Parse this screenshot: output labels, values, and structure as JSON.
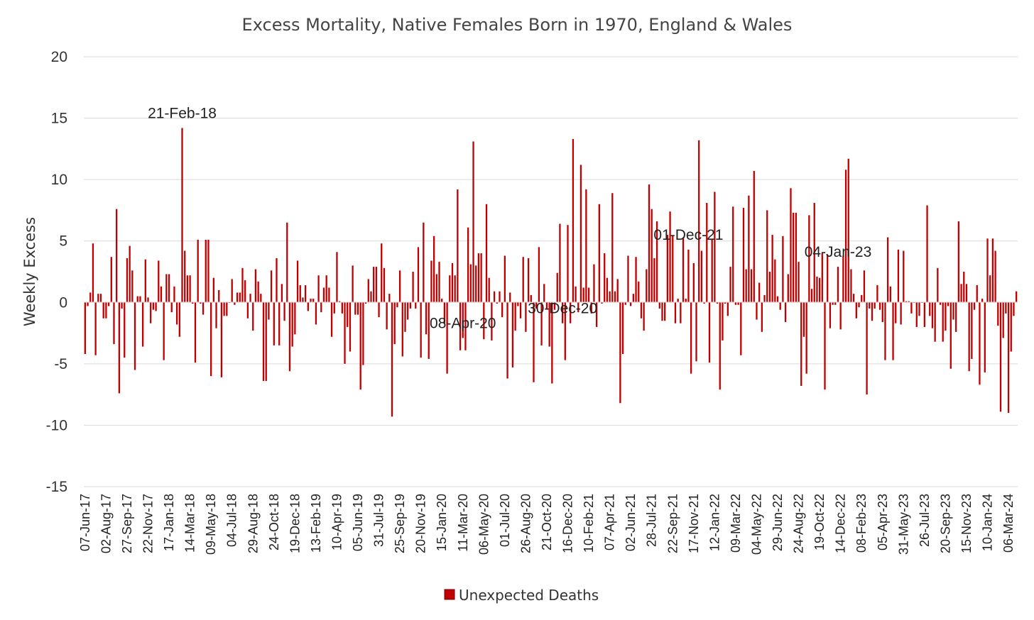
{
  "chart_data": {
    "type": "bar",
    "title": "Excess Mortality, Native Females Born in 1970, England & Wales",
    "ylabel": "Weekly Excess",
    "xlabel": "",
    "ylim": [
      -15,
      20
    ],
    "yticks": [
      20,
      15,
      10,
      5,
      0,
      -5,
      -10,
      -15
    ],
    "grid": "horizontal",
    "legend_position": "bottom",
    "series": [
      {
        "name": "Unexpected Deaths",
        "color": "#C00000",
        "values": [
          -4.2,
          -0.3,
          0.8,
          4.8,
          -4.3,
          0.7,
          0.7,
          -1.3,
          -1.3,
          -0.3,
          3.7,
          -3.4,
          7.6,
          -7.4,
          -0.5,
          -4.5,
          3.6,
          4.6,
          2.6,
          -5.5,
          0.5,
          0.5,
          -3.6,
          3.5,
          0.4,
          -1.7,
          -0.6,
          -0.7,
          3.4,
          1.3,
          -4.7,
          2.3,
          2.3,
          -0.8,
          1.3,
          -1.8,
          -2.8,
          14.2,
          4.2,
          2.2,
          2.2,
          -0.1,
          -4.9,
          5.1,
          -0.1,
          -1.0,
          5.1,
          5.1,
          -6.0,
          2.0,
          -2.1,
          1.0,
          -6.1,
          -1.1,
          -1.1,
          0.0,
          1.9,
          -0.2,
          0.8,
          0.8,
          2.8,
          1.8,
          -1.3,
          0.7,
          -2.3,
          2.7,
          1.7,
          0.7,
          -6.4,
          -6.4,
          -1.4,
          2.6,
          -3.5,
          3.6,
          -3.5,
          1.5,
          -1.5,
          6.5,
          -5.6,
          -3.6,
          -2.6,
          3.4,
          1.4,
          0.4,
          1.4,
          -0.7,
          0.3,
          0.3,
          -1.8,
          2.2,
          -0.8,
          1.2,
          2.2,
          1.2,
          -2.8,
          -0.9,
          4.1,
          0.1,
          -0.9,
          -5.0,
          -2.0,
          -4.0,
          3.0,
          -1.0,
          -1.0,
          -7.1,
          -5.1,
          -0.1,
          1.9,
          0.9,
          2.9,
          2.9,
          -1.2,
          4.8,
          2.8,
          -2.2,
          0.7,
          -9.3,
          -3.4,
          -0.4,
          2.6,
          -4.4,
          -2.4,
          -1.4,
          -0.5,
          2.5,
          -0.5,
          4.5,
          -4.5,
          6.5,
          -2.6,
          -4.6,
          3.4,
          5.4,
          2.3,
          3.3,
          0.3,
          -1.7,
          -5.8,
          2.2,
          3.2,
          2.2,
          9.2,
          -3.9,
          -2.9,
          -3.9,
          6.1,
          3.1,
          13.1,
          3.0,
          4.0,
          4.0,
          -3.0,
          8.0,
          2.0,
          -3.1,
          0.9,
          -0.1,
          0.9,
          -1.2,
          3.8,
          -6.2,
          0.8,
          -5.3,
          -2.3,
          -0.3,
          -1.3,
          3.7,
          -2.4,
          3.6,
          0.6,
          -6.5,
          -0.5,
          4.5,
          -3.5,
          1.5,
          -0.5,
          -3.6,
          -6.6,
          -0.6,
          2.4,
          6.4,
          -1.7,
          -4.7,
          6.3,
          -1.7,
          13.3,
          1.3,
          -0.8,
          11.2,
          1.2,
          9.2,
          1.2,
          -0.9,
          3.1,
          -2.0,
          8.0,
          -0.1,
          4.0,
          2.0,
          0.9,
          8.9,
          0.9,
          1.9,
          -8.2,
          -4.2,
          -0.2,
          3.8,
          -0.3,
          0.7,
          3.7,
          1.7,
          -1.3,
          -2.3,
          2.7,
          9.6,
          7.6,
          3.6,
          6.6,
          -0.5,
          -1.5,
          -1.5,
          5.5,
          7.4,
          5.4,
          -1.7,
          0.3,
          -1.7,
          5.3,
          0.3,
          4.3,
          -5.8,
          3.2,
          -4.8,
          13.2,
          4.2,
          -0.1,
          8.1,
          -4.9,
          5.1,
          9.0,
          -0.1,
          -7.1,
          -3.1,
          -0.1,
          -1.1,
          2.9,
          7.8,
          -0.2,
          -0.2,
          -4.3,
          7.7,
          2.7,
          8.7,
          2.7,
          10.7,
          -1.4,
          1.6,
          -2.4,
          0.6,
          7.5,
          2.5,
          5.5,
          3.5,
          0.5,
          -0.6,
          5.4,
          -1.6,
          2.3,
          9.3,
          7.3,
          7.3,
          3.3,
          -6.8,
          -2.8,
          -5.8,
          7.1,
          1.1,
          8.1,
          2.1,
          2.0,
          4.0,
          -7.1,
          3.9,
          -2.1,
          -0.2,
          -0.2,
          2.9,
          -2.2,
          3.8,
          10.8,
          11.7,
          2.7,
          0.7,
          -1.3,
          -0.4,
          0.6,
          2.6,
          -7.5,
          -0.5,
          -1.5,
          -0.5,
          1.4,
          -0.6,
          -1.6,
          -4.7,
          5.3,
          1.3,
          -4.7,
          -1.7,
          4.3,
          -1.8,
          4.2,
          0.1,
          0.1,
          -0.9,
          0.0,
          -2.0,
          -1.1,
          0.0,
          -2.0,
          7.9,
          -1.1,
          -2.1,
          -3.2,
          2.8,
          -0.2,
          -3.2,
          -2.3,
          -0.3,
          -5.4,
          -1.4,
          -2.4,
          6.6,
          1.5,
          2.5,
          1.5,
          -5.6,
          -4.6,
          -0.6,
          1.4,
          -6.7,
          0.3,
          -5.7,
          5.2,
          2.2,
          5.2,
          4.2,
          -1.9,
          -8.9,
          -2.9,
          -0.9,
          -9.0,
          -4.0,
          -1.1,
          0.9
        ]
      }
    ],
    "x_tick_labels": [
      "07-Jun-17",
      "02-Aug-17",
      "27-Sep-17",
      "22-Nov-17",
      "17-Jan-18",
      "14-Mar-18",
      "09-May-18",
      "04-Jul-18",
      "29-Aug-18",
      "24-Oct-18",
      "19-Dec-18",
      "13-Feb-19",
      "10-Apr-19",
      "05-Jun-19",
      "31-Jul-19",
      "25-Sep-19",
      "20-Nov-19",
      "15-Jan-20",
      "11-Mar-20",
      "06-May-20",
      "01-Jul-20",
      "26-Aug-20",
      "21-Oct-20",
      "16-Dec-20",
      "10-Feb-21",
      "07-Apr-21",
      "02-Jun-21",
      "28-Jul-21",
      "22-Sep-21",
      "17-Nov-21",
      "12-Jan-22",
      "09-Mar-22",
      "04-May-22",
      "29-Jun-22",
      "24-Aug-22",
      "19-Oct-22",
      "14-Dec-22",
      "08-Feb-23",
      "05-Apr-23",
      "31-May-23",
      "26-Jul-23",
      "20-Sep-23",
      "15-Nov-23",
      "10-Jan-24",
      "06-Mar-24"
    ],
    "annotations": [
      {
        "text": "21-Feb-18",
        "index": 37
      },
      {
        "text": "08-Apr-20",
        "index": 144
      },
      {
        "text": "30-Dec-20",
        "index": 182
      },
      {
        "text": "01-Dec-21",
        "index": 230
      },
      {
        "text": "04-Jan-23",
        "index": 287
      }
    ]
  }
}
